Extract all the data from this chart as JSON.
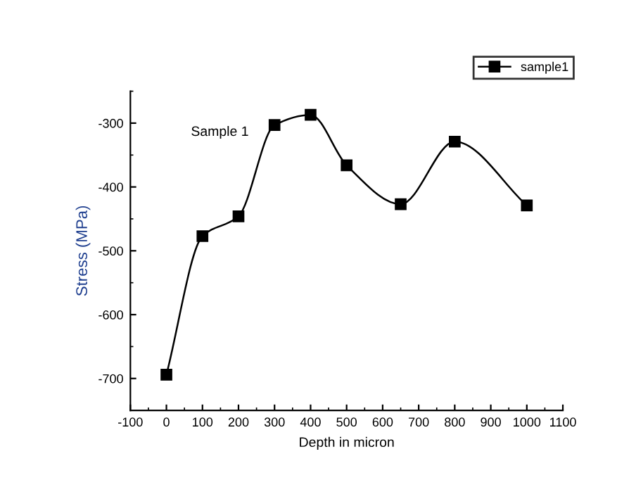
{
  "chart_data": {
    "type": "line",
    "xlabel": "Depth in micron",
    "ylabel": "Stress (MPa)",
    "annotations": [
      "Sample 1"
    ],
    "x": [
      0,
      100,
      200,
      300,
      400,
      500,
      650,
      800,
      1000
    ],
    "series": [
      {
        "name": "sample1",
        "color": "#000000",
        "values": [
          -694,
          -477,
          -446,
          -303,
          -287,
          -366,
          -427,
          -329,
          -429
        ]
      }
    ],
    "xlim": [
      -100,
      1100
    ],
    "xticks": [
      -100,
      0,
      100,
      200,
      300,
      400,
      500,
      600,
      700,
      800,
      900,
      1000,
      1100
    ],
    "ylim": [
      -750,
      -250
    ],
    "yticks": [
      -700,
      -600,
      -500,
      -400,
      -300
    ],
    "grid": false,
    "legend": "top right",
    "marker": "square",
    "line_style": "solid"
  }
}
